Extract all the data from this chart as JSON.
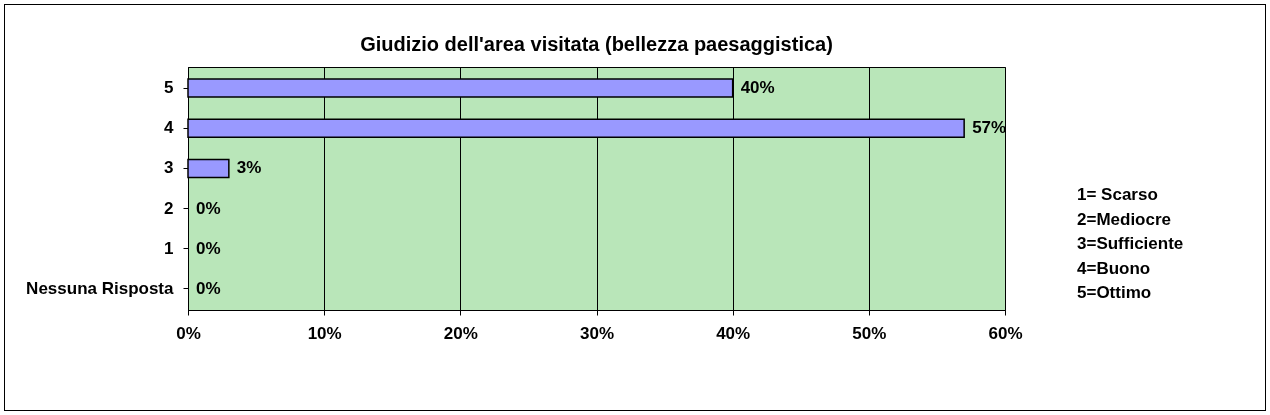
{
  "chart_data": {
    "type": "bar",
    "orientation": "horizontal",
    "title": "Giudizio dell'area visitata (bellezza paesaggistica)",
    "categories": [
      "5",
      "4",
      "3",
      "2",
      "1",
      "Nessuna Risposta"
    ],
    "values": [
      40,
      57,
      3,
      0,
      0,
      0
    ],
    "value_labels": [
      "40%",
      "57%",
      "3%",
      "0%",
      "0%",
      "0%"
    ],
    "color": "#9999ff",
    "xlim": [
      0,
      60
    ],
    "xticks": [
      {
        "value": 0,
        "label": "0%"
      },
      {
        "value": 10,
        "label": "10%"
      },
      {
        "value": 20,
        "label": "20%"
      },
      {
        "value": 30,
        "label": "30%"
      },
      {
        "value": 40,
        "label": "40%"
      },
      {
        "value": 50,
        "label": "50%"
      },
      {
        "value": 60,
        "label": "60%"
      }
    ],
    "grid": "x",
    "annotations": [
      "1= Scarso",
      "2=Mediocre",
      "3=Sufficiente",
      "4=Buono",
      "5=Ottimo"
    ]
  }
}
